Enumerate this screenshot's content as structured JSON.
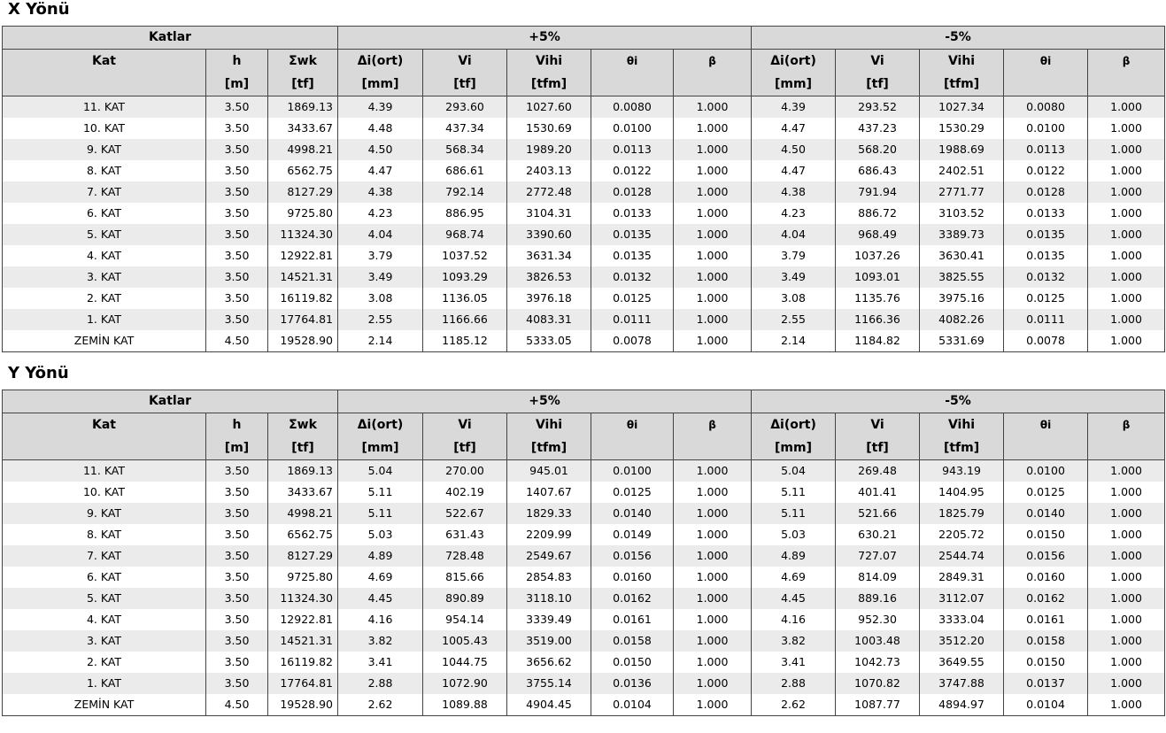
{
  "header_labels": {
    "group_katlar": "Katlar",
    "group_plus": "+5%",
    "group_minus": "-5%",
    "columns": [
      {
        "l1": "Kat",
        "l2": ""
      },
      {
        "l1": "h",
        "l2": "[m]"
      },
      {
        "l1": "Σwk",
        "l2": "[tf]"
      },
      {
        "l1": "Δi(ort)",
        "l2": "[mm]"
      },
      {
        "l1": "Vi",
        "l2": "[tf]"
      },
      {
        "l1": "Vihi",
        "l2": "[tfm]"
      },
      {
        "l1": "θi",
        "l2": ""
      },
      {
        "l1": "β",
        "l2": ""
      },
      {
        "l1": "Δi(ort)",
        "l2": "[mm]"
      },
      {
        "l1": "Vi",
        "l2": "[tf]"
      },
      {
        "l1": "Vihi",
        "l2": "[tfm]"
      },
      {
        "l1": "θi",
        "l2": ""
      },
      {
        "l1": "β",
        "l2": ""
      }
    ]
  },
  "tables": [
    {
      "title": "X Yönü",
      "rows": [
        [
          "11. KAT",
          "3.50",
          "1869.13",
          "4.39",
          "293.60",
          "1027.60",
          "0.0080",
          "1.000",
          "4.39",
          "293.52",
          "1027.34",
          "0.0080",
          "1.000"
        ],
        [
          "10. KAT",
          "3.50",
          "3433.67",
          "4.48",
          "437.34",
          "1530.69",
          "0.0100",
          "1.000",
          "4.47",
          "437.23",
          "1530.29",
          "0.0100",
          "1.000"
        ],
        [
          "9. KAT",
          "3.50",
          "4998.21",
          "4.50",
          "568.34",
          "1989.20",
          "0.0113",
          "1.000",
          "4.50",
          "568.20",
          "1988.69",
          "0.0113",
          "1.000"
        ],
        [
          "8. KAT",
          "3.50",
          "6562.75",
          "4.47",
          "686.61",
          "2403.13",
          "0.0122",
          "1.000",
          "4.47",
          "686.43",
          "2402.51",
          "0.0122",
          "1.000"
        ],
        [
          "7. KAT",
          "3.50",
          "8127.29",
          "4.38",
          "792.14",
          "2772.48",
          "0.0128",
          "1.000",
          "4.38",
          "791.94",
          "2771.77",
          "0.0128",
          "1.000"
        ],
        [
          "6. KAT",
          "3.50",
          "9725.80",
          "4.23",
          "886.95",
          "3104.31",
          "0.0133",
          "1.000",
          "4.23",
          "886.72",
          "3103.52",
          "0.0133",
          "1.000"
        ],
        [
          "5. KAT",
          "3.50",
          "11324.30",
          "4.04",
          "968.74",
          "3390.60",
          "0.0135",
          "1.000",
          "4.04",
          "968.49",
          "3389.73",
          "0.0135",
          "1.000"
        ],
        [
          "4. KAT",
          "3.50",
          "12922.81",
          "3.79",
          "1037.52",
          "3631.34",
          "0.0135",
          "1.000",
          "3.79",
          "1037.26",
          "3630.41",
          "0.0135",
          "1.000"
        ],
        [
          "3. KAT",
          "3.50",
          "14521.31",
          "3.49",
          "1093.29",
          "3826.53",
          "0.0132",
          "1.000",
          "3.49",
          "1093.01",
          "3825.55",
          "0.0132",
          "1.000"
        ],
        [
          "2. KAT",
          "3.50",
          "16119.82",
          "3.08",
          "1136.05",
          "3976.18",
          "0.0125",
          "1.000",
          "3.08",
          "1135.76",
          "3975.16",
          "0.0125",
          "1.000"
        ],
        [
          "1. KAT",
          "3.50",
          "17764.81",
          "2.55",
          "1166.66",
          "4083.31",
          "0.0111",
          "1.000",
          "2.55",
          "1166.36",
          "4082.26",
          "0.0111",
          "1.000"
        ],
        [
          "ZEMİN KAT",
          "4.50",
          "19528.90",
          "2.14",
          "1185.12",
          "5333.05",
          "0.0078",
          "1.000",
          "2.14",
          "1184.82",
          "5331.69",
          "0.0078",
          "1.000"
        ]
      ]
    },
    {
      "title": "Y Yönü",
      "rows": [
        [
          "11. KAT",
          "3.50",
          "1869.13",
          "5.04",
          "270.00",
          "945.01",
          "0.0100",
          "1.000",
          "5.04",
          "269.48",
          "943.19",
          "0.0100",
          "1.000"
        ],
        [
          "10. KAT",
          "3.50",
          "3433.67",
          "5.11",
          "402.19",
          "1407.67",
          "0.0125",
          "1.000",
          "5.11",
          "401.41",
          "1404.95",
          "0.0125",
          "1.000"
        ],
        [
          "9. KAT",
          "3.50",
          "4998.21",
          "5.11",
          "522.67",
          "1829.33",
          "0.0140",
          "1.000",
          "5.11",
          "521.66",
          "1825.79",
          "0.0140",
          "1.000"
        ],
        [
          "8. KAT",
          "3.50",
          "6562.75",
          "5.03",
          "631.43",
          "2209.99",
          "0.0149",
          "1.000",
          "5.03",
          "630.21",
          "2205.72",
          "0.0150",
          "1.000"
        ],
        [
          "7. KAT",
          "3.50",
          "8127.29",
          "4.89",
          "728.48",
          "2549.67",
          "0.0156",
          "1.000",
          "4.89",
          "727.07",
          "2544.74",
          "0.0156",
          "1.000"
        ],
        [
          "6. KAT",
          "3.50",
          "9725.80",
          "4.69",
          "815.66",
          "2854.83",
          "0.0160",
          "1.000",
          "4.69",
          "814.09",
          "2849.31",
          "0.0160",
          "1.000"
        ],
        [
          "5. KAT",
          "3.50",
          "11324.30",
          "4.45",
          "890.89",
          "3118.10",
          "0.0162",
          "1.000",
          "4.45",
          "889.16",
          "3112.07",
          "0.0162",
          "1.000"
        ],
        [
          "4. KAT",
          "3.50",
          "12922.81",
          "4.16",
          "954.14",
          "3339.49",
          "0.0161",
          "1.000",
          "4.16",
          "952.30",
          "3333.04",
          "0.0161",
          "1.000"
        ],
        [
          "3. KAT",
          "3.50",
          "14521.31",
          "3.82",
          "1005.43",
          "3519.00",
          "0.0158",
          "1.000",
          "3.82",
          "1003.48",
          "3512.20",
          "0.0158",
          "1.000"
        ],
        [
          "2. KAT",
          "3.50",
          "16119.82",
          "3.41",
          "1044.75",
          "3656.62",
          "0.0150",
          "1.000",
          "3.41",
          "1042.73",
          "3649.55",
          "0.0150",
          "1.000"
        ],
        [
          "1. KAT",
          "3.50",
          "17764.81",
          "2.88",
          "1072.90",
          "3755.14",
          "0.0136",
          "1.000",
          "2.88",
          "1070.82",
          "3747.88",
          "0.0137",
          "1.000"
        ],
        [
          "ZEMİN KAT",
          "4.50",
          "19528.90",
          "2.62",
          "1089.88",
          "4904.45",
          "0.0104",
          "1.000",
          "2.62",
          "1087.77",
          "4894.97",
          "0.0104",
          "1.000"
        ]
      ]
    }
  ]
}
